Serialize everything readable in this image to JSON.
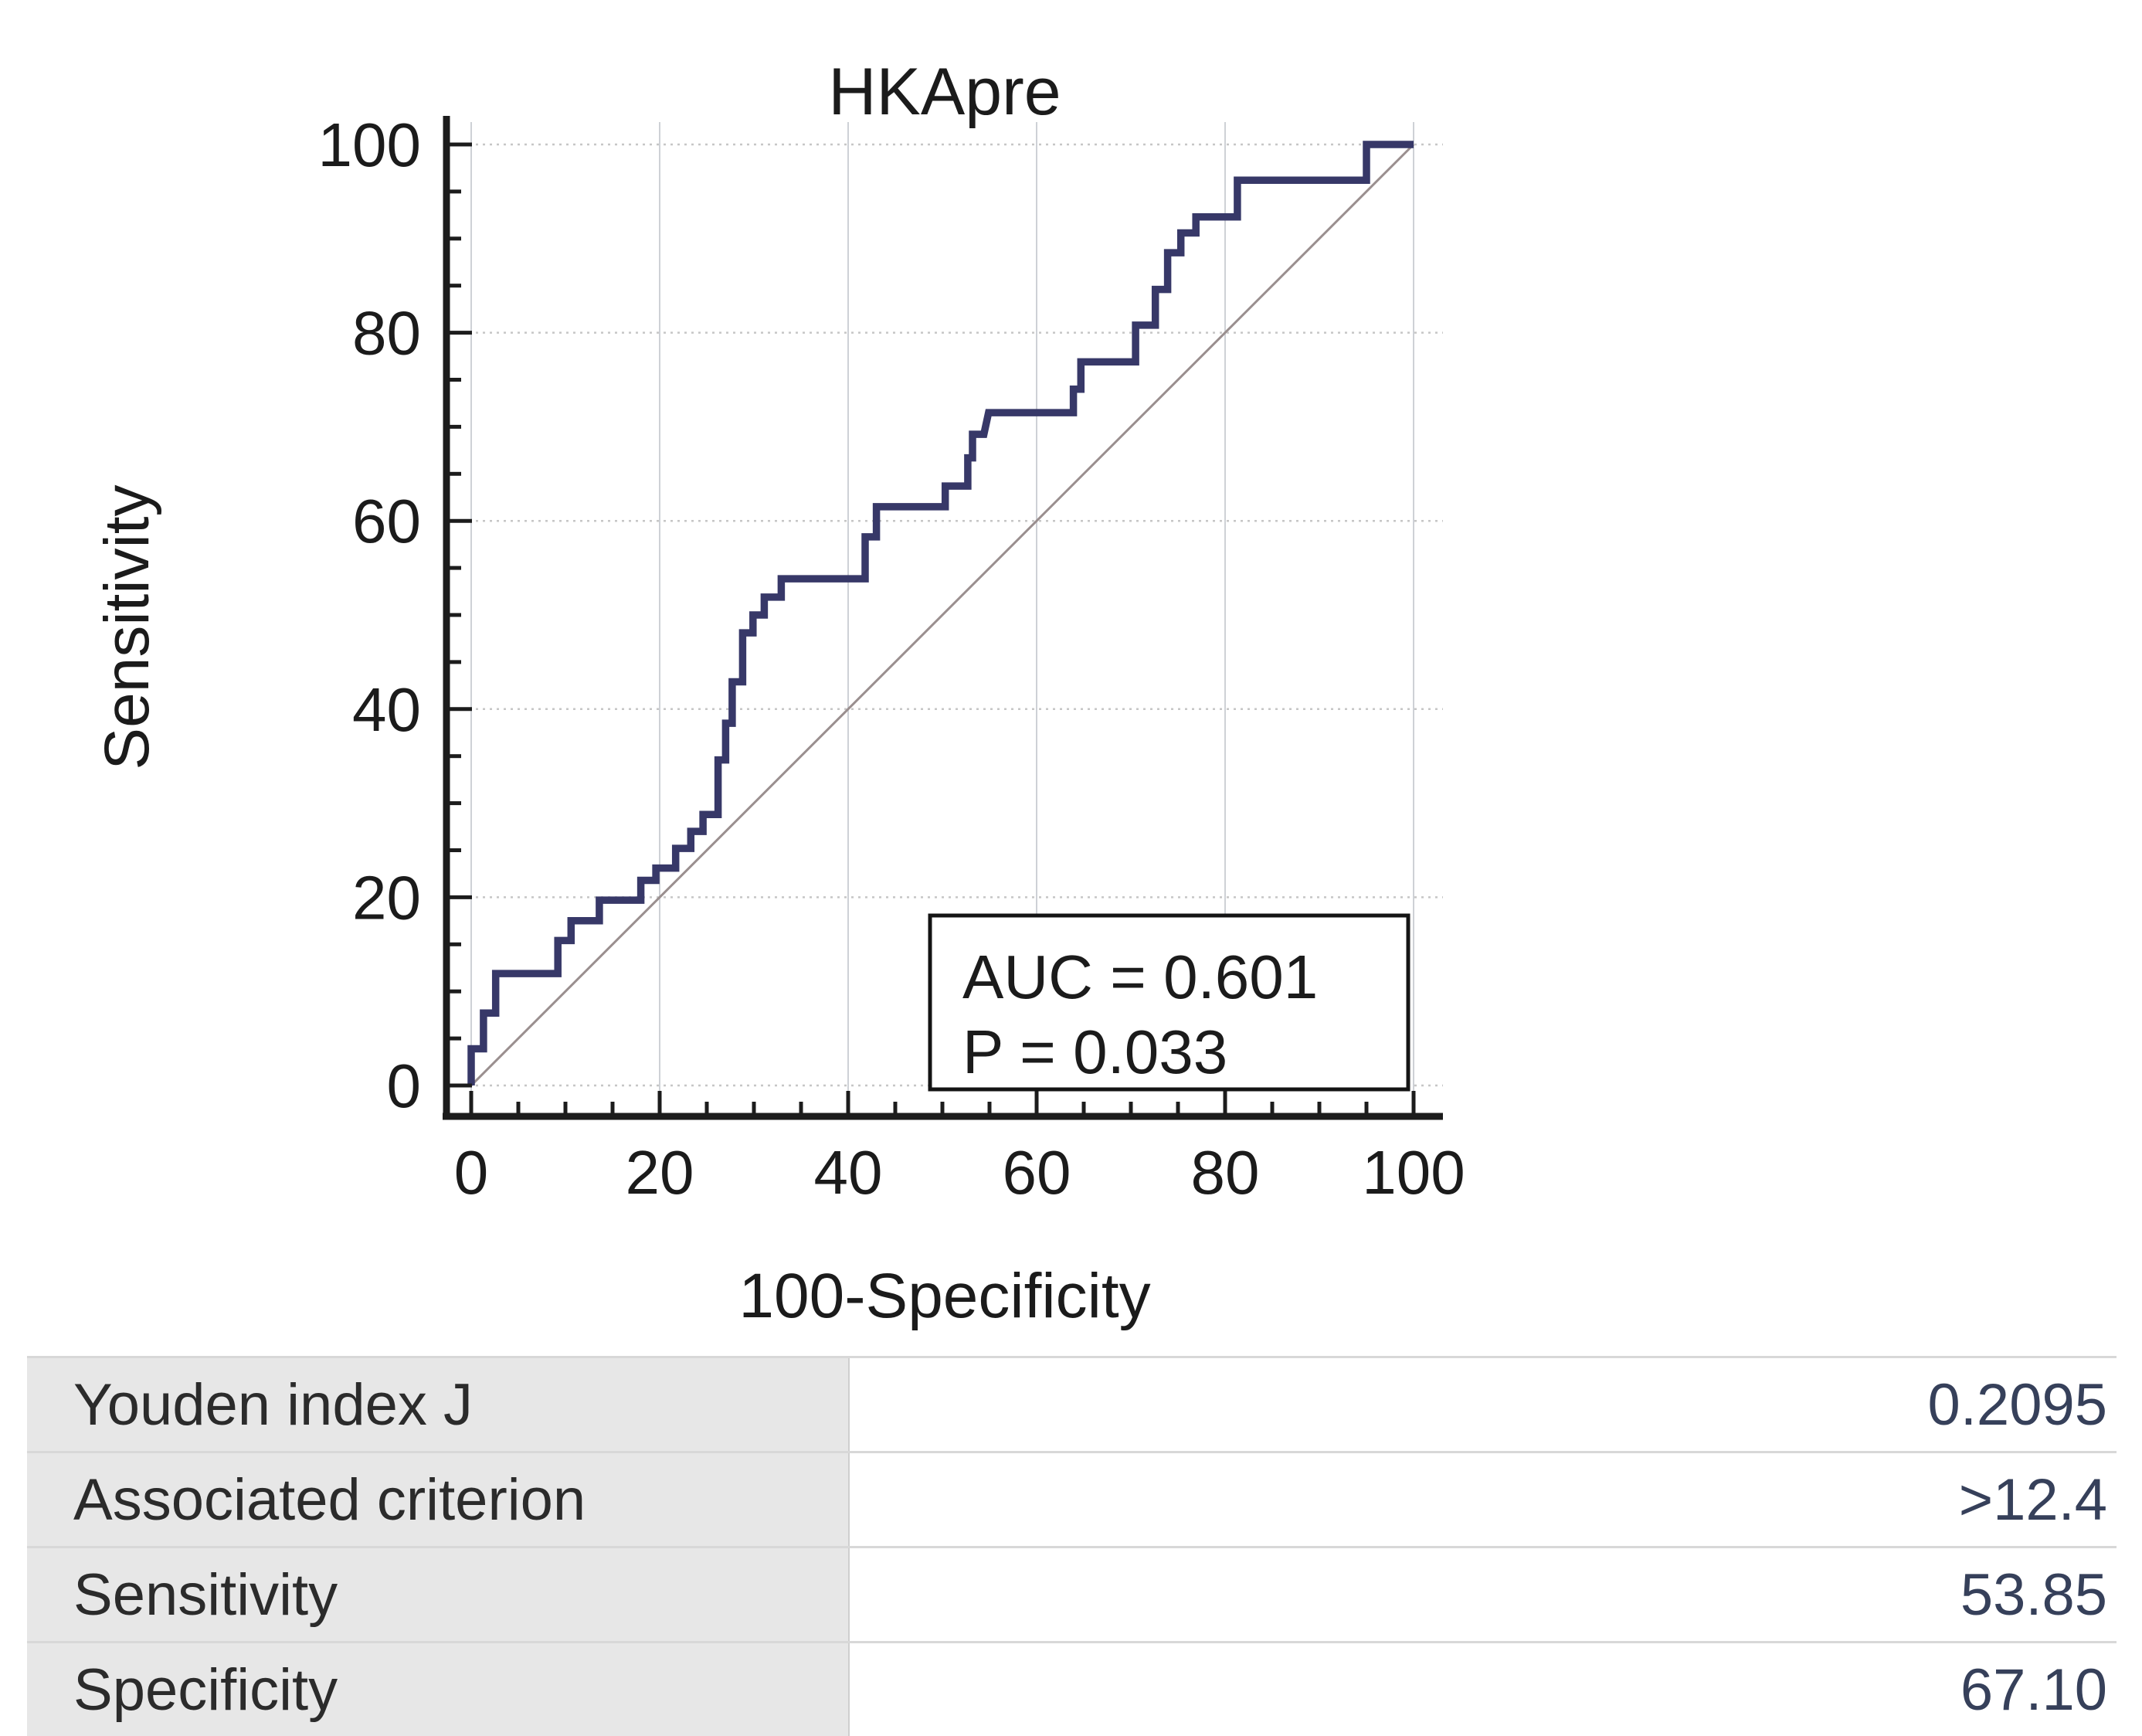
{
  "title": "HKApre",
  "chart_data": {
    "type": "line",
    "title": "HKApre",
    "xlabel": "100-Specificity",
    "ylabel": "Sensitivity",
    "xlim": [
      0,
      100
    ],
    "ylim": [
      0,
      100
    ],
    "xticks": [
      0,
      20,
      40,
      60,
      80,
      100
    ],
    "yticks": [
      0,
      20,
      40,
      60,
      80,
      100
    ],
    "minor_tick_step": 5,
    "grid": {
      "vertical": "solid",
      "horizontal": "dotted",
      "on": true
    },
    "legend": "none",
    "series": [
      {
        "name": "roc-curve",
        "color": "#373868",
        "width": 9.5,
        "points": [
          [
            0,
            0
          ],
          [
            0,
            3.9
          ],
          [
            1.3,
            3.9
          ],
          [
            1.3,
            7.7
          ],
          [
            2.6,
            7.7
          ],
          [
            2.6,
            11.9
          ],
          [
            9.2,
            11.9
          ],
          [
            9.2,
            15.4
          ],
          [
            10.6,
            15.4
          ],
          [
            10.6,
            17.5
          ],
          [
            13.6,
            17.5
          ],
          [
            13.6,
            19.7
          ],
          [
            18.0,
            19.7
          ],
          [
            18.0,
            21.8
          ],
          [
            19.6,
            21.8
          ],
          [
            19.6,
            23.1
          ],
          [
            21.7,
            23.1
          ],
          [
            21.7,
            25.2
          ],
          [
            23.3,
            25.2
          ],
          [
            23.3,
            27.0
          ],
          [
            24.6,
            27.0
          ],
          [
            24.6,
            28.8
          ],
          [
            26.2,
            28.8
          ],
          [
            26.2,
            34.6
          ],
          [
            27.0,
            34.6
          ],
          [
            27.0,
            38.5
          ],
          [
            27.7,
            38.5
          ],
          [
            27.7,
            42.9
          ],
          [
            28.8,
            42.9
          ],
          [
            28.8,
            48.1
          ],
          [
            29.9,
            48.1
          ],
          [
            29.9,
            50.0
          ],
          [
            31.1,
            50.0
          ],
          [
            31.1,
            51.9
          ],
          [
            32.9,
            51.9
          ],
          [
            32.9,
            53.85
          ],
          [
            41.8,
            53.85
          ],
          [
            41.8,
            58.3
          ],
          [
            43.0,
            58.3
          ],
          [
            43.0,
            61.5
          ],
          [
            50.3,
            61.5
          ],
          [
            50.3,
            63.7
          ],
          [
            52.7,
            63.7
          ],
          [
            52.7,
            66.7
          ],
          [
            53.2,
            66.7
          ],
          [
            53.2,
            69.2
          ],
          [
            54.4,
            69.2
          ],
          [
            54.9,
            71.5
          ],
          [
            63.9,
            71.5
          ],
          [
            63.9,
            74.0
          ],
          [
            64.7,
            74.0
          ],
          [
            64.7,
            76.9
          ],
          [
            70.5,
            76.9
          ],
          [
            70.5,
            80.8
          ],
          [
            72.6,
            80.8
          ],
          [
            72.6,
            84.6
          ],
          [
            73.9,
            84.6
          ],
          [
            73.9,
            88.5
          ],
          [
            75.3,
            88.5
          ],
          [
            75.3,
            90.6
          ],
          [
            76.9,
            90.6
          ],
          [
            76.9,
            92.3
          ],
          [
            81.3,
            92.3
          ],
          [
            81.3,
            96.2
          ],
          [
            95.0,
            96.2
          ],
          [
            95.0,
            100
          ],
          [
            100,
            100
          ]
        ]
      },
      {
        "name": "reference-diagonal",
        "color": "#9a8f8f",
        "width": 3,
        "points": [
          [
            0,
            0
          ],
          [
            100,
            100
          ]
        ]
      }
    ],
    "annotation": {
      "lines": [
        "AUC = 0.601",
        "P = 0.033"
      ],
      "auc": 0.601,
      "p_value": 0.033,
      "boxed": true
    }
  },
  "annotation": {
    "auc_label": "AUC = 0.601",
    "p_label": "P = 0.033"
  },
  "table": {
    "rows": [
      {
        "label": "Youden index J",
        "value": "0.2095"
      },
      {
        "label": "Associated criterion",
        "value": ">12.4"
      },
      {
        "label": "Sensitivity",
        "value": "53.85"
      },
      {
        "label": "Specificity",
        "value": "67.10"
      }
    ]
  },
  "colors": {
    "curve": "#373868",
    "diagonal": "#9a8f8f",
    "grid_vertical": "#ced1d6",
    "grid_horizontal": "#c6c6c6",
    "axis": "#1c1c1c",
    "text": "#1b1b1b",
    "table_label_bg": "#e7e7e7",
    "table_separator": "#d8d8d8",
    "table_value_text": "#36405a"
  }
}
